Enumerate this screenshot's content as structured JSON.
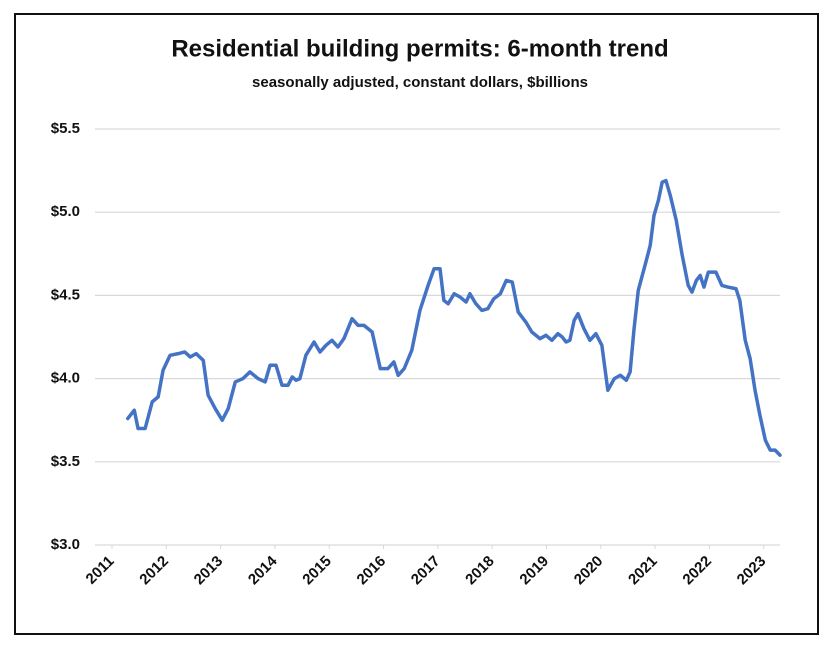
{
  "chart_data": {
    "type": "line",
    "title": "Residential building permits: 6-month trend",
    "subtitle": "seasonally adjusted, constant dollars, $billions",
    "color": "#4472c4",
    "grid": true,
    "x": [
      2011.29,
      2011.41,
      2011.48,
      2011.61,
      2011.74,
      2011.85,
      2011.94,
      2012.07,
      2012.22,
      2012.34,
      2012.44,
      2012.55,
      2012.68,
      2012.77,
      2012.9,
      2013.03,
      2013.14,
      2013.27,
      2013.41,
      2013.54,
      2013.69,
      2013.82,
      2013.91,
      2014.02,
      2014.13,
      2014.24,
      2014.32,
      2014.39,
      2014.46,
      2014.57,
      2014.72,
      2014.83,
      2014.94,
      2015.05,
      2015.16,
      2015.27,
      2015.42,
      2015.53,
      2015.64,
      2015.79,
      2015.94,
      2016.08,
      2016.19,
      2016.27,
      2016.38,
      2016.52,
      2016.67,
      2016.82,
      2016.93,
      2017.04,
      2017.11,
      2017.19,
      2017.3,
      2017.41,
      2017.52,
      2017.59,
      2017.7,
      2017.81,
      2017.92,
      2018.03,
      2018.15,
      2018.26,
      2018.37,
      2018.48,
      2018.62,
      2018.73,
      2018.88,
      2018.99,
      2019.1,
      2019.21,
      2019.29,
      2019.36,
      2019.43,
      2019.51,
      2019.58,
      2019.69,
      2019.8,
      2019.91,
      2020.02,
      2020.13,
      2020.25,
      2020.36,
      2020.47,
      2020.54,
      2020.61,
      2020.69,
      2020.83,
      2020.91,
      2020.98,
      2021.06,
      2021.13,
      2021.2,
      2021.28,
      2021.39,
      2021.5,
      2021.61,
      2021.68,
      2021.76,
      2021.83,
      2021.9,
      2021.98,
      2022.12,
      2022.23,
      2022.34,
      2022.49,
      2022.56,
      2022.66,
      2022.75,
      2022.84,
      2022.93,
      2023.03,
      2023.12,
      2023.21,
      2023.3
    ],
    "values": [
      3.76,
      3.81,
      3.7,
      3.7,
      3.86,
      3.89,
      4.05,
      4.14,
      4.15,
      4.16,
      4.13,
      4.15,
      4.11,
      3.9,
      3.82,
      3.75,
      3.82,
      3.98,
      4.0,
      4.04,
      4.0,
      3.98,
      4.08,
      4.08,
      3.96,
      3.96,
      4.01,
      3.99,
      4.0,
      4.14,
      4.22,
      4.16,
      4.2,
      4.23,
      4.19,
      4.24,
      4.36,
      4.32,
      4.32,
      4.28,
      4.06,
      4.06,
      4.1,
      4.02,
      4.06,
      4.17,
      4.41,
      4.56,
      4.66,
      4.66,
      4.47,
      4.45,
      4.51,
      4.49,
      4.46,
      4.51,
      4.45,
      4.41,
      4.42,
      4.48,
      4.51,
      4.59,
      4.58,
      4.4,
      4.34,
      4.28,
      4.24,
      4.26,
      4.23,
      4.27,
      4.25,
      4.22,
      4.23,
      4.35,
      4.39,
      4.3,
      4.23,
      4.27,
      4.2,
      3.93,
      4.0,
      4.02,
      3.99,
      4.04,
      4.29,
      4.53,
      4.7,
      4.8,
      4.98,
      5.07,
      5.18,
      5.19,
      5.1,
      4.95,
      4.74,
      4.56,
      4.52,
      4.59,
      4.62,
      4.55,
      4.64,
      4.64,
      4.56,
      4.55,
      4.54,
      4.47,
      4.23,
      4.12,
      3.93,
      3.78,
      3.63,
      3.57,
      3.57,
      3.54
    ],
    "xlim": [
      2011,
      2023.3
    ],
    "xticks": [
      2011,
      2012,
      2013,
      2014,
      2015,
      2016,
      2017,
      2018,
      2019,
      2020,
      2021,
      2022,
      2023
    ],
    "ylim": [
      3.0,
      5.5
    ],
    "yticks": [
      {
        "value": 3.0,
        "label": "$3.0"
      },
      {
        "value": 3.5,
        "label": "$3.5"
      },
      {
        "value": 4.0,
        "label": "$4.0"
      },
      {
        "value": 4.5,
        "label": "$4.5"
      },
      {
        "value": 5.0,
        "label": "$5.0"
      },
      {
        "value": 5.5,
        "label": "$5.5"
      }
    ]
  }
}
